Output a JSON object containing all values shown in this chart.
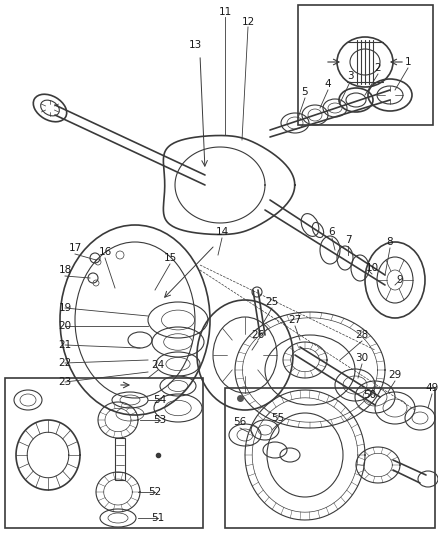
{
  "bg_color": "#f5f5f5",
  "line_color": "#3a3a3a",
  "text_color": "#1a1a1a",
  "fig_width": 4.38,
  "fig_height": 5.33,
  "dpi": 100
}
